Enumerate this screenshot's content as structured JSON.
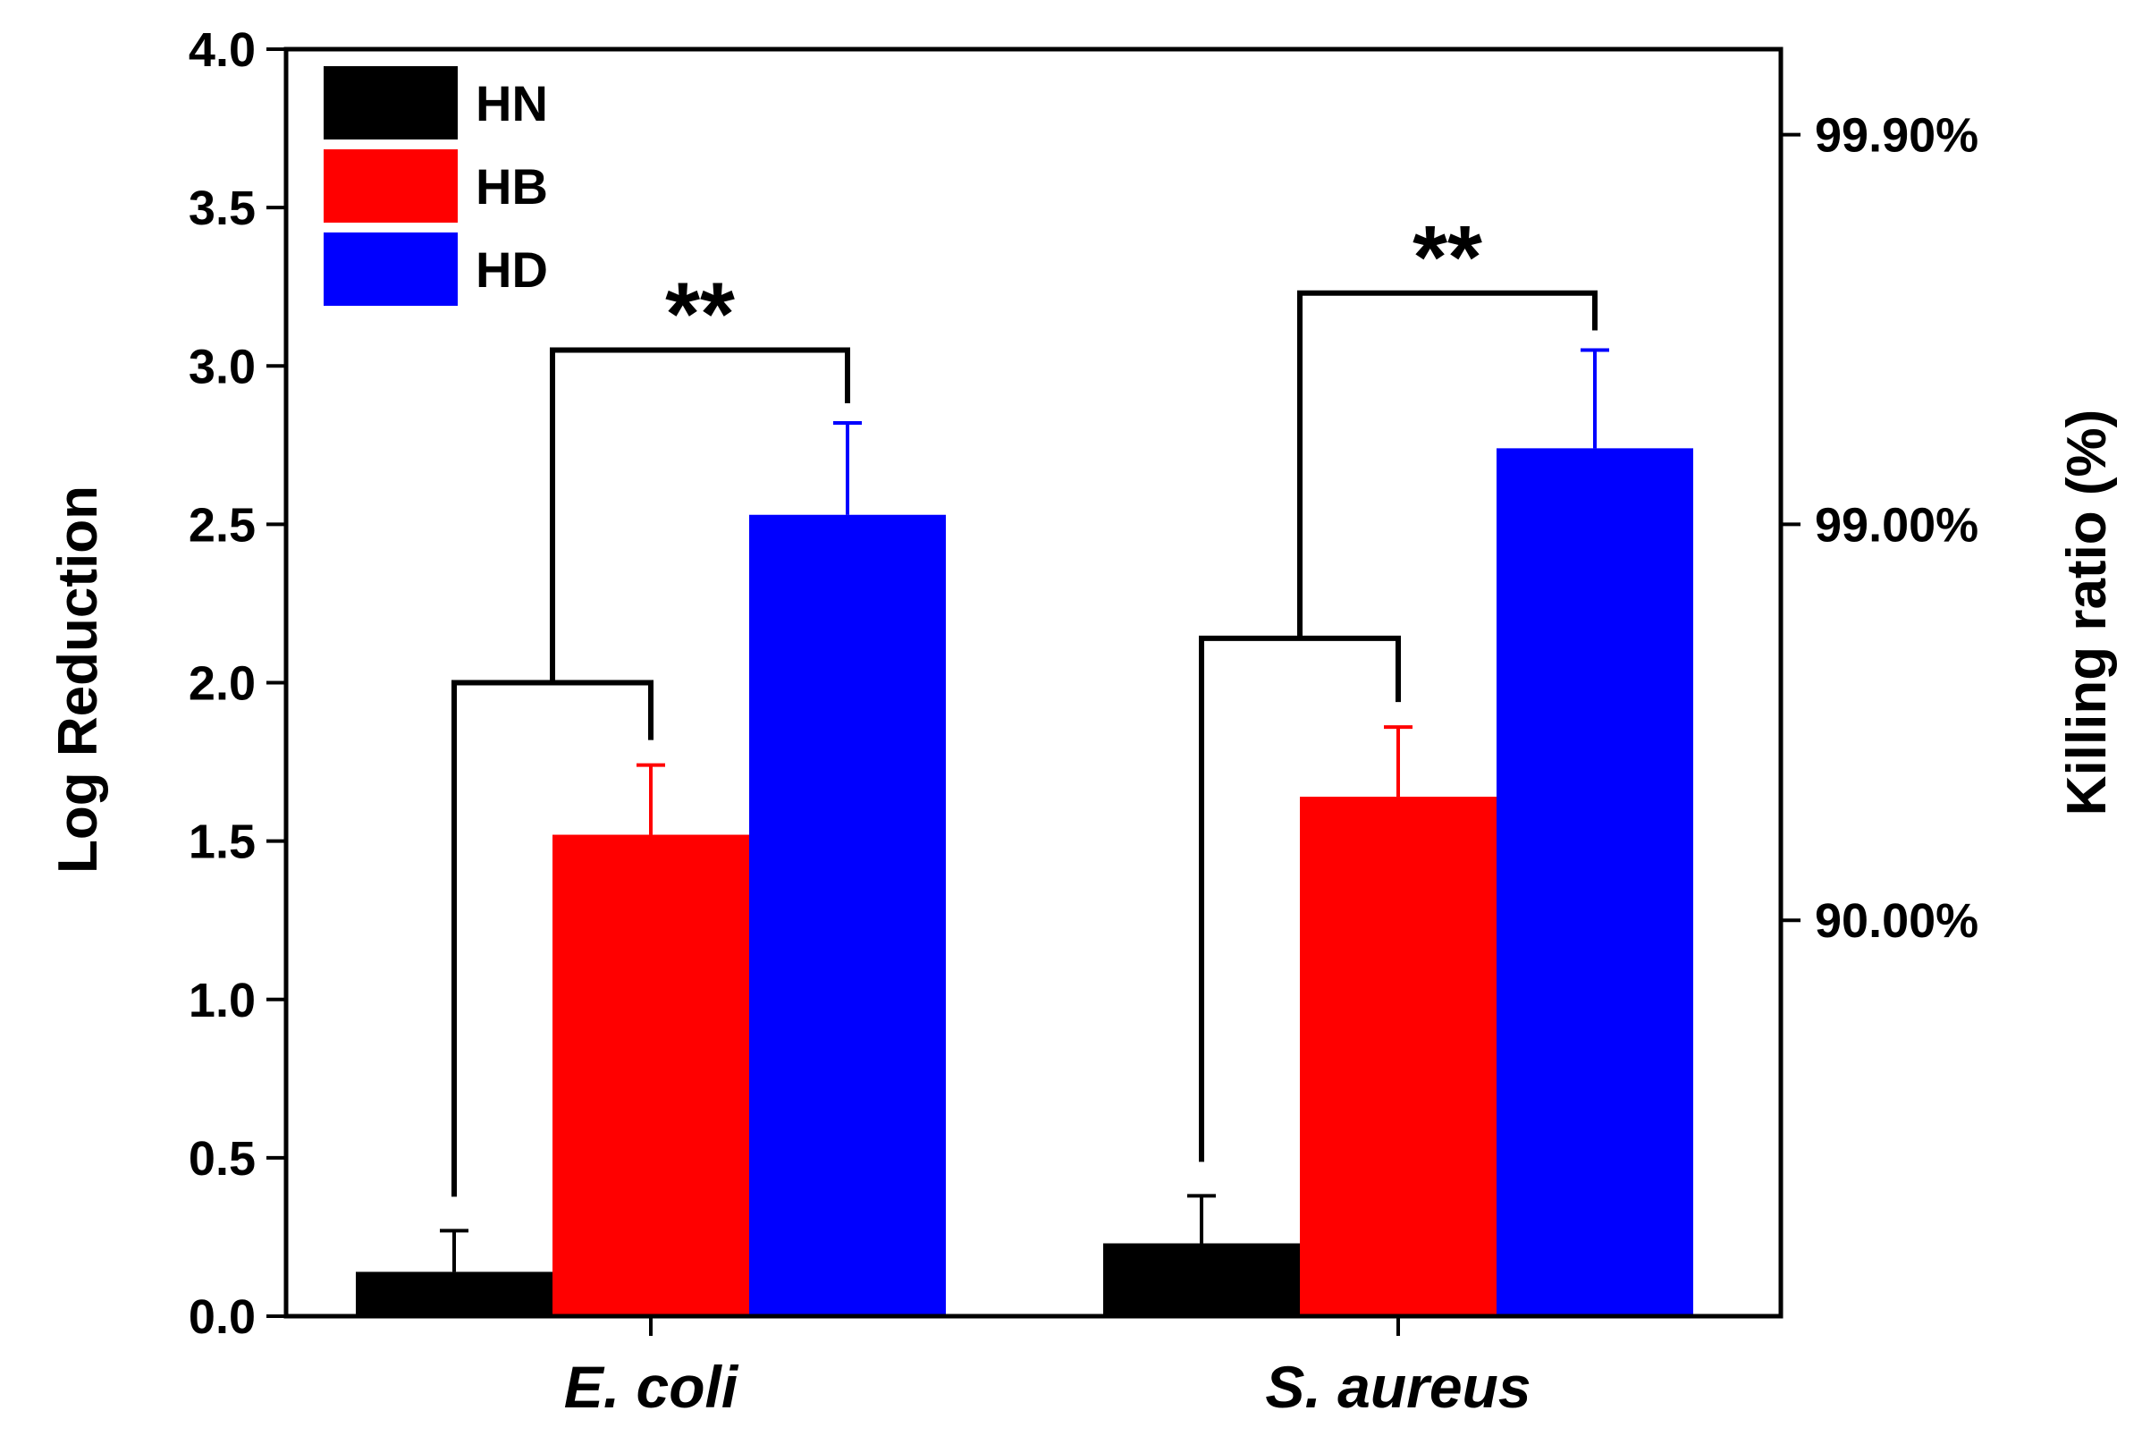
{
  "chart_data": {
    "type": "bar",
    "categories": [
      "E. coli",
      "S. aureus"
    ],
    "series": [
      {
        "name": "HN",
        "color": "#000000",
        "values": [
          0.14,
          0.23
        ],
        "errors": [
          0.13,
          0.15
        ]
      },
      {
        "name": "HB",
        "color": "#ff0000",
        "values": [
          1.52,
          1.64
        ],
        "errors": [
          0.22,
          0.22
        ]
      },
      {
        "name": "HD",
        "color": "#0000ff",
        "values": [
          2.53,
          2.74
        ],
        "errors": [
          0.29,
          0.31
        ]
      }
    ],
    "ylabel": "Log Reduction",
    "ylim": [
      0,
      4.0
    ],
    "yticks": [
      0.0,
      0.5,
      1.0,
      1.5,
      2.0,
      2.5,
      3.0,
      3.5,
      4.0
    ],
    "ytick_labels": [
      "0.0",
      "0.5",
      "1.0",
      "1.5",
      "2.0",
      "2.5",
      "3.0",
      "3.5",
      "4.0"
    ],
    "y2label": "Killing ratio (%)",
    "y2ticks": [
      1,
      2,
      3
    ],
    "y2tick_labels": [
      "90.00%",
      "99.00%",
      "99.90%"
    ],
    "legend_position": "top-left",
    "grid": false,
    "significance": [
      {
        "category": "E. coli",
        "label": "**",
        "levels": [
          2.0,
          3.05
        ]
      },
      {
        "category": "S. aureus",
        "label": "**",
        "levels": [
          2.14,
          3.23
        ]
      }
    ]
  }
}
